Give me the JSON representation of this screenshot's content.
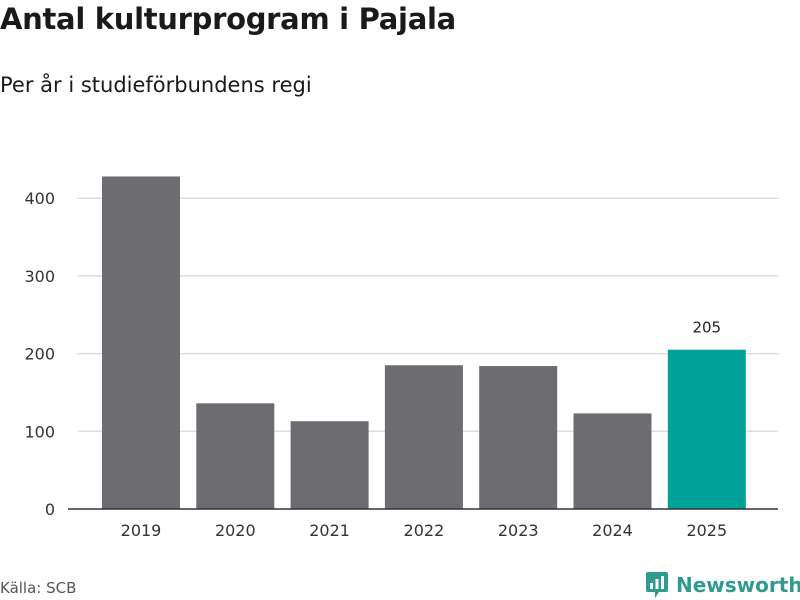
{
  "title": "Antal kulturprogram i Pajala",
  "subtitle": "Per år i studieförbundens regi",
  "source": "Källa: SCB",
  "brand": {
    "name": "Newsworthy",
    "icon": "newsworthy-logo-icon",
    "color": "#2f9b8f"
  },
  "colors": {
    "bar": "#6d6c70",
    "highlight": "#00a198",
    "grid": "#dddddd",
    "axis": "#333333"
  },
  "chart_data": {
    "type": "bar",
    "categories": [
      "2019",
      "2020",
      "2021",
      "2022",
      "2023",
      "2024",
      "2025"
    ],
    "values": [
      428,
      136,
      113,
      185,
      184,
      123,
      205
    ],
    "highlight_index": 6,
    "data_labels": [
      {
        "index": 6,
        "text": "205"
      }
    ],
    "yticks": [
      0,
      100,
      200,
      300,
      400
    ],
    "ylim": [
      0,
      440
    ],
    "grid": true,
    "legend": "none"
  }
}
